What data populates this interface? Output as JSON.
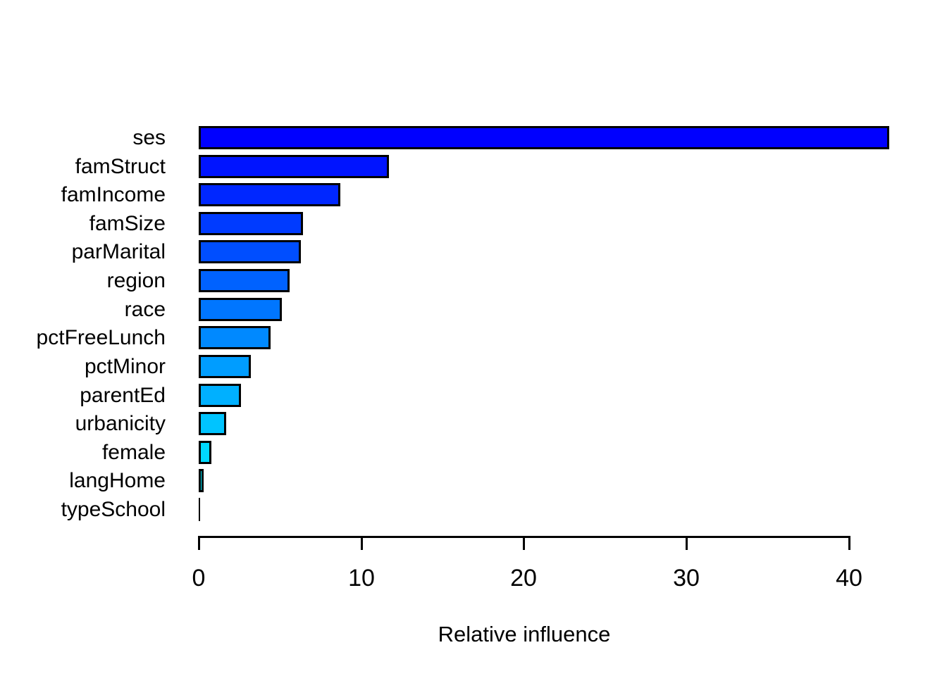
{
  "chart_data": {
    "type": "bar",
    "orientation": "horizontal",
    "title": "",
    "xlabel": "Relative influence",
    "ylabel": "",
    "categories": [
      "ses",
      "famStruct",
      "famIncome",
      "famSize",
      "parMarital",
      "region",
      "race",
      "pctFreeLunch",
      "pctMinor",
      "parentEd",
      "urbanicity",
      "female",
      "langHome",
      "typeSchool"
    ],
    "values": [
      42.5,
      11.7,
      8.7,
      6.4,
      6.3,
      5.6,
      5.1,
      4.4,
      3.2,
      2.6,
      1.7,
      0.8,
      0.3,
      0.02
    ],
    "bar_colors": [
      "#0000FF",
      "#0014FF",
      "#0027FF",
      "#003BFF",
      "#004EFF",
      "#0062FF",
      "#0076FF",
      "#0089FF",
      "#009DFF",
      "#00B0FF",
      "#00C4FF",
      "#00D8FF",
      "#00EBFF",
      "#00FFFF"
    ],
    "bar_border_color": "#000000",
    "x_ticks": [
      0,
      10,
      20,
      30,
      40
    ],
    "xlim": [
      0,
      40
    ],
    "grid": false,
    "legend": null,
    "background": "#FFFFFF",
    "text_color": "#000000"
  }
}
